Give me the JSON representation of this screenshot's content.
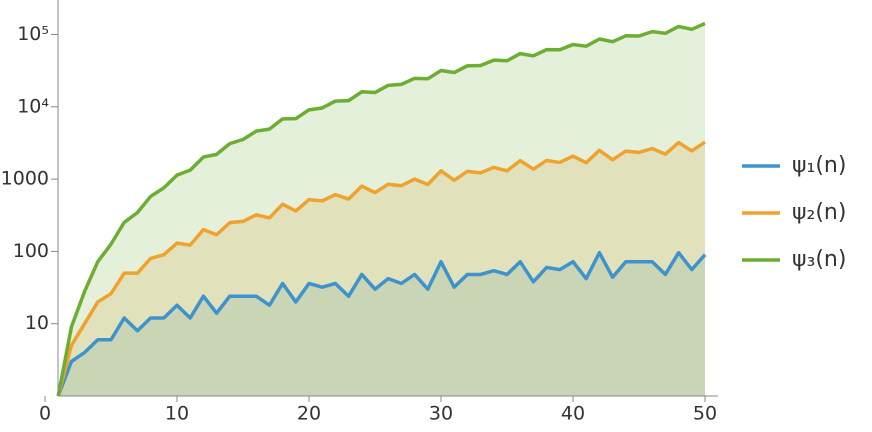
{
  "chart_data": {
    "type": "area",
    "log_y": true,
    "x": [
      1,
      2,
      3,
      4,
      5,
      6,
      7,
      8,
      9,
      10,
      11,
      12,
      13,
      14,
      15,
      16,
      17,
      18,
      19,
      20,
      21,
      22,
      23,
      24,
      25,
      26,
      27,
      28,
      29,
      30,
      31,
      32,
      33,
      34,
      35,
      36,
      37,
      38,
      39,
      40,
      41,
      42,
      43,
      44,
      45,
      46,
      47,
      48,
      49,
      50
    ],
    "series": [
      {
        "name": "ψ₁(n)",
        "color": "#3f93cc",
        "values": [
          1,
          3,
          4,
          6,
          6,
          12,
          8,
          12,
          12,
          18,
          12,
          24,
          14,
          24,
          24,
          24,
          18,
          36,
          20,
          36,
          32,
          36,
          24,
          48,
          30,
          42,
          36,
          48,
          30,
          72,
          32,
          48,
          48,
          54,
          48,
          72,
          38,
          60,
          56,
          72,
          42,
          96,
          44,
          72,
          72,
          72,
          48,
          96,
          56,
          90
        ]
      },
      {
        "name": "ψ₂(n)",
        "color": "#f0a22e",
        "values": [
          1,
          5,
          10,
          20,
          26,
          50,
          50,
          80,
          90,
          130,
          122,
          200,
          170,
          250,
          260,
          320,
          290,
          450,
          362,
          520,
          500,
          610,
          530,
          800,
          650,
          850,
          810,
          1000,
          842,
          1300,
          962,
          1280,
          1220,
          1450,
          1300,
          1800,
          1370,
          1810,
          1700,
          2080,
          1682,
          2500,
          1850,
          2440,
          2340,
          2650,
          2210,
          3200,
          2450,
          3250
        ]
      },
      {
        "name": "ψ₃(n)",
        "color": "#6cae32",
        "values": [
          1,
          9,
          28,
          72,
          126,
          252,
          344,
          576,
          756,
          1134,
          1332,
          2016,
          2198,
          3096,
          3528,
          4608,
          4914,
          6804,
          6860,
          9072,
          9632,
          11988,
          12168,
          16128,
          15750,
          19782,
          20412,
          24768,
          24390,
          31752,
          29792,
          36864,
          37296,
          44226,
          43344,
          54432,
          50654,
          61740,
          61544,
          72576,
          68922,
          86688,
          79508,
          95904,
          95256,
          109512,
          103824,
          129024,
          117992,
          141750
        ]
      }
    ],
    "xlim": [
      0,
      50
    ],
    "xticks": [
      0,
      10,
      20,
      30,
      40,
      50
    ],
    "ylim": [
      1,
      300000
    ],
    "yticks": [
      10,
      100,
      1000,
      {
        "value": 10000,
        "label": "10⁴"
      },
      {
        "value": 100000,
        "label": "10⁵"
      }
    ]
  }
}
